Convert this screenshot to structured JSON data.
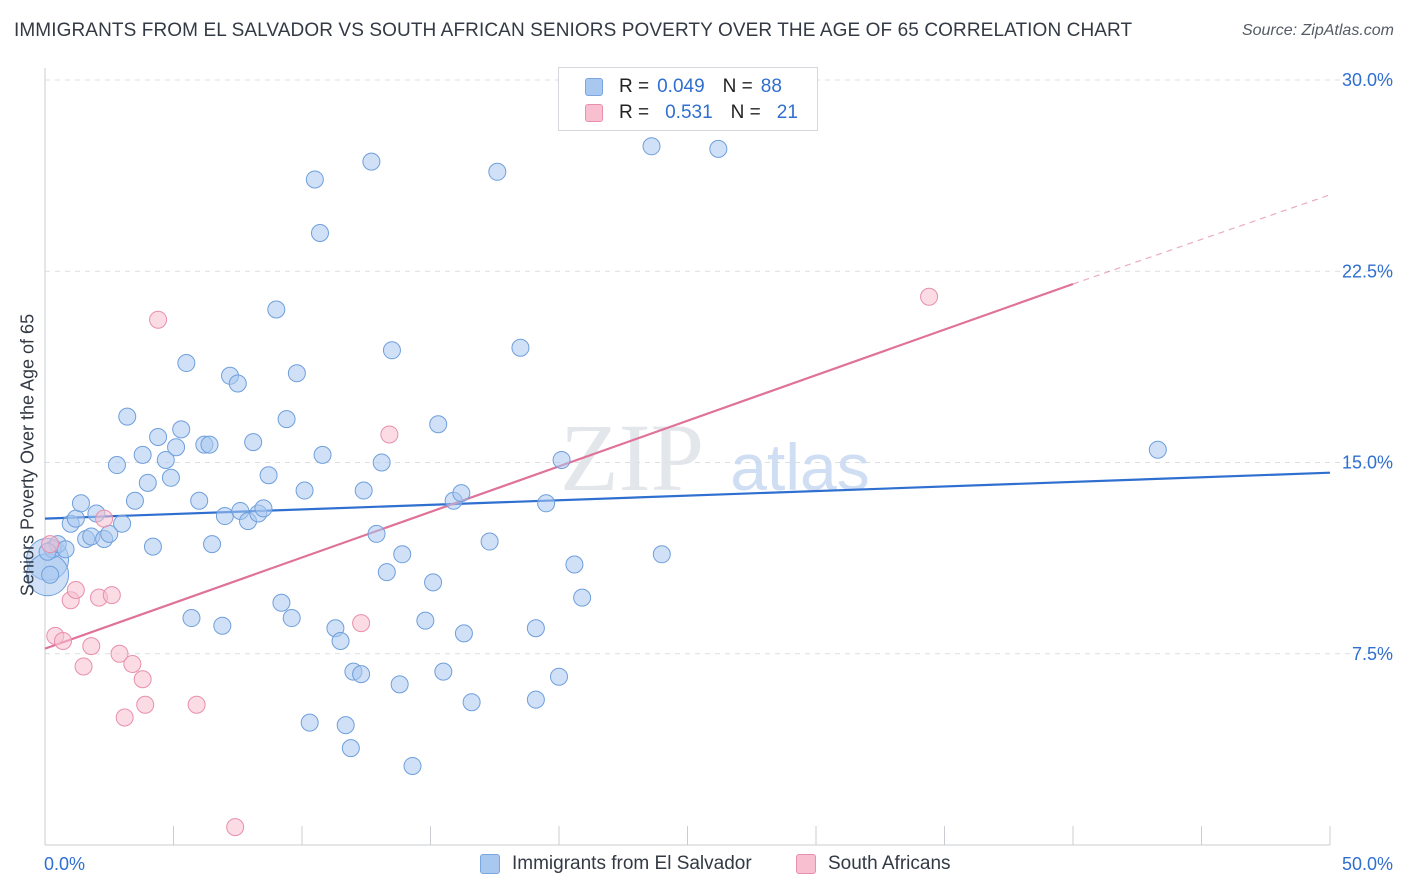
{
  "title": "IMMIGRANTS FROM EL SALVADOR VS SOUTH AFRICAN SENIORS POVERTY OVER THE AGE OF 65 CORRELATION CHART",
  "source": "Source: ZipAtlas.com",
  "watermark": {
    "zip": "ZIP",
    "atlas": "atlas"
  },
  "legend": {
    "rows": [
      {
        "r_label": "R =",
        "r_value": "0.049",
        "n_label": "N =",
        "n_value": "88",
        "color": "#a9c8f0",
        "border": "#7aa6e0"
      },
      {
        "r_label": "R =",
        "r_value": "0.531",
        "n_label": "N =",
        "n_value": "21",
        "color": "#f7bfd0",
        "border": "#e88fad"
      }
    ]
  },
  "bottom_legend": [
    {
      "label": "Immigrants from El Salvador",
      "color": "#a9c8f0",
      "border": "#7aa6e0"
    },
    {
      "label": "South Africans",
      "color": "#f7bfd0",
      "border": "#e88fad"
    }
  ],
  "chart_data": {
    "type": "scatter",
    "title": "IMMIGRANTS FROM EL SALVADOR VS SOUTH AFRICAN SENIORS POVERTY OVER THE AGE OF 65 CORRELATION CHART",
    "xlabel": "",
    "ylabel": "Seniors Poverty Over the Age of 65",
    "xlim": [
      0,
      50
    ],
    "ylim": [
      0,
      30
    ],
    "x_tick_labels": [
      "0.0%",
      "50.0%"
    ],
    "y_ticks": [
      7.5,
      15,
      22.5,
      30
    ],
    "y_tick_labels": [
      "7.5%",
      "15.0%",
      "22.5%",
      "30.0%"
    ],
    "grid": true,
    "legend_position": "top-center",
    "series": [
      {
        "name": "Immigrants from El Salvador",
        "color": "#a9c8f0",
        "edge": "#6f9fdc",
        "line_color": "#2f6fd0",
        "trend": {
          "x": [
            0,
            50
          ],
          "y": [
            12.8,
            14.6
          ],
          "dashed_from": null
        },
        "points": [
          [
            0.3,
            11.6
          ],
          [
            0.2,
            10.6
          ],
          [
            0.5,
            11.8
          ],
          [
            0.8,
            11.6
          ],
          [
            1.0,
            12.6
          ],
          [
            1.2,
            12.8
          ],
          [
            1.4,
            13.4
          ],
          [
            1.6,
            12.0
          ],
          [
            1.8,
            12.1
          ],
          [
            2.0,
            13.0
          ],
          [
            2.3,
            12.0
          ],
          [
            2.5,
            12.2
          ],
          [
            2.8,
            14.9
          ],
          [
            3.0,
            12.6
          ],
          [
            3.2,
            16.8
          ],
          [
            3.5,
            13.5
          ],
          [
            3.8,
            15.3
          ],
          [
            4.0,
            14.2
          ],
          [
            4.2,
            11.7
          ],
          [
            4.4,
            16.0
          ],
          [
            4.7,
            15.1
          ],
          [
            4.9,
            14.4
          ],
          [
            5.1,
            15.6
          ],
          [
            5.3,
            16.3
          ],
          [
            5.5,
            18.9
          ],
          [
            5.7,
            8.9
          ],
          [
            6.0,
            13.5
          ],
          [
            6.2,
            15.7
          ],
          [
            6.4,
            15.7
          ],
          [
            6.5,
            11.8
          ],
          [
            6.9,
            8.6
          ],
          [
            7.0,
            12.9
          ],
          [
            7.2,
            18.4
          ],
          [
            7.5,
            18.1
          ],
          [
            7.6,
            13.1
          ],
          [
            7.9,
            12.7
          ],
          [
            8.1,
            15.8
          ],
          [
            8.3,
            13.0
          ],
          [
            8.5,
            13.2
          ],
          [
            8.7,
            14.5
          ],
          [
            9.0,
            21.0
          ],
          [
            9.2,
            9.5
          ],
          [
            9.4,
            16.7
          ],
          [
            9.6,
            8.9
          ],
          [
            9.8,
            18.5
          ],
          [
            10.1,
            13.9
          ],
          [
            10.3,
            4.8
          ],
          [
            10.5,
            26.1
          ],
          [
            10.7,
            24.0
          ],
          [
            10.8,
            15.3
          ],
          [
            11.3,
            8.5
          ],
          [
            11.5,
            8.0
          ],
          [
            11.7,
            4.7
          ],
          [
            11.9,
            3.8
          ],
          [
            12.0,
            6.8
          ],
          [
            12.3,
            6.7
          ],
          [
            12.4,
            13.9
          ],
          [
            12.7,
            26.8
          ],
          [
            12.9,
            12.2
          ],
          [
            13.1,
            15.0
          ],
          [
            13.3,
            10.7
          ],
          [
            13.5,
            19.4
          ],
          [
            13.8,
            6.3
          ],
          [
            13.9,
            11.4
          ],
          [
            14.3,
            3.1
          ],
          [
            14.8,
            8.8
          ],
          [
            15.1,
            10.3
          ],
          [
            15.3,
            16.5
          ],
          [
            15.5,
            6.8
          ],
          [
            15.9,
            13.5
          ],
          [
            16.2,
            13.8
          ],
          [
            16.3,
            8.3
          ],
          [
            16.6,
            5.6
          ],
          [
            17.3,
            11.9
          ],
          [
            17.6,
            26.4
          ],
          [
            18.5,
            19.5
          ],
          [
            19.1,
            8.5
          ],
          [
            19.1,
            5.7
          ],
          [
            19.5,
            13.4
          ],
          [
            20.0,
            6.6
          ],
          [
            20.1,
            15.1
          ],
          [
            20.6,
            11.0
          ],
          [
            20.9,
            9.7
          ],
          [
            23.6,
            27.4
          ],
          [
            24.0,
            11.4
          ],
          [
            26.2,
            27.3
          ],
          [
            43.3,
            15.5
          ],
          [
            0.1,
            11.5
          ]
        ],
        "large_points": [
          [
            0.1,
            11.2
          ],
          [
            0.1,
            10.6
          ]
        ]
      },
      {
        "name": "South Africans",
        "color": "#f7bfd0",
        "edge": "#e88fad",
        "line_color": "#e0729a",
        "trend": {
          "x": [
            0,
            40
          ],
          "y": [
            7.7,
            22.0
          ],
          "dashed_to": [
            50,
            25.5
          ]
        },
        "points": [
          [
            0.2,
            11.8
          ],
          [
            0.4,
            8.2
          ],
          [
            0.7,
            8.0
          ],
          [
            1.0,
            9.6
          ],
          [
            1.2,
            10.0
          ],
          [
            1.5,
            7.0
          ],
          [
            1.8,
            7.8
          ],
          [
            2.1,
            9.7
          ],
          [
            2.3,
            12.8
          ],
          [
            2.6,
            9.8
          ],
          [
            2.9,
            7.5
          ],
          [
            3.1,
            5.0
          ],
          [
            3.4,
            7.1
          ],
          [
            3.8,
            6.5
          ],
          [
            3.9,
            5.5
          ],
          [
            4.4,
            20.6
          ],
          [
            5.9,
            5.5
          ],
          [
            7.4,
            0.7
          ],
          [
            13.4,
            16.1
          ],
          [
            12.3,
            8.7
          ],
          [
            34.4,
            21.5
          ]
        ]
      }
    ]
  }
}
